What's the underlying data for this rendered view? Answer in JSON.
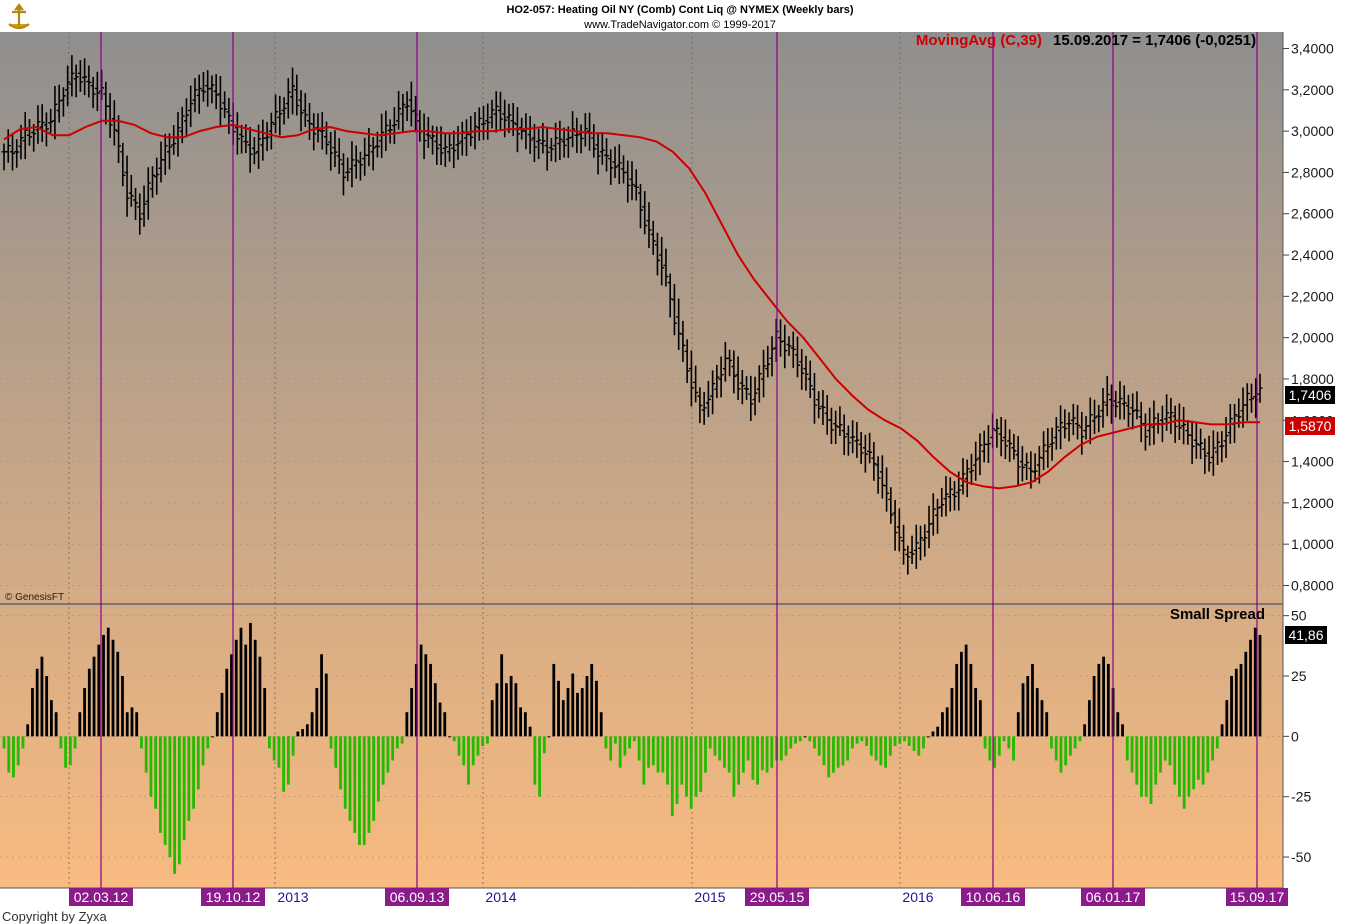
{
  "header": {
    "title": "HO2-057:  Heating Oil NY (Comb) Cont Liq @ NYMEX  (Weekly bars)",
    "subtitle": "www.TradeNavigator.com © 1999-2017"
  },
  "legend": {
    "indicator": "MovingAvg (C,39)",
    "reading": "15.09.2017 = 1,7406 (-0,0251)"
  },
  "watermark": "© GenesisFT",
  "copyright": "Copyright by Zyxa",
  "colors": {
    "bg_top": "#8f8f8f",
    "bg_bottom": "#f9bb80",
    "price_bars": "#000000",
    "moving_avg": "#cc0000",
    "vertical_markers": "#8b008b",
    "hist_positive": "#000000",
    "hist_negative": "#22bb00",
    "legend_text": "#cc0000"
  },
  "chart_data": [
    {
      "type": "ohlc",
      "name": "price_panel",
      "y_axis": {
        "ticks": [
          "3,4000",
          "3,2000",
          "3,0000",
          "2,8000",
          "2,6000",
          "2,4000",
          "2,2000",
          "2,0000",
          "1,8000",
          "1,6000",
          "1,4000",
          "1,2000",
          "1,0000",
          "0,8000"
        ],
        "ylim": [
          0.72,
          3.48
        ]
      },
      "last_price_label": "1,7406",
      "moving_avg_label": "1,5870",
      "series": [
        {
          "name": "Heating Oil weekly close",
          "values": [
            2.9,
            2.98,
            3.02,
            3.05,
            3.2,
            3.28,
            3.22,
            3.18,
            3.0,
            2.7,
            2.6,
            2.78,
            2.9,
            3.0,
            3.15,
            3.22,
            3.18,
            3.05,
            2.95,
            2.9,
            3.0,
            3.1,
            3.2,
            3.05,
            3.0,
            2.92,
            2.8,
            2.85,
            2.9,
            2.98,
            3.05,
            3.15,
            3.0,
            2.95,
            2.9,
            2.95,
            3.0,
            3.05,
            3.1,
            3.05,
            3.0,
            2.95,
            2.92,
            2.95,
            2.98,
            3.0,
            2.9,
            2.85,
            2.8,
            2.7,
            2.5,
            2.35,
            2.1,
            1.85,
            1.65,
            1.75,
            1.9,
            1.78,
            1.7,
            1.85,
            2.0,
            1.95,
            1.85,
            1.7,
            1.6,
            1.55,
            1.5,
            1.45,
            1.35,
            1.15,
            0.95,
            0.98,
            1.1,
            1.22,
            1.25,
            1.35,
            1.45,
            1.55,
            1.5,
            1.4,
            1.35,
            1.45,
            1.55,
            1.6,
            1.55,
            1.62,
            1.7,
            1.68,
            1.65,
            1.55,
            1.6,
            1.62,
            1.55,
            1.48,
            1.42,
            1.5,
            1.62,
            1.7,
            1.74
          ]
        },
        {
          "name": "MovingAvg (C,39)",
          "values": [
            2.96,
            3.01,
            3.02,
            2.98,
            2.98,
            3.02,
            3.05,
            3.05,
            3.03,
            2.99,
            2.97,
            2.97,
            3.0,
            3.02,
            3.03,
            3.01,
            2.99,
            2.97,
            2.98,
            3.01,
            3.02,
            3.0,
            2.99,
            2.98,
            2.99,
            3.0,
            3.0,
            2.99,
            2.99,
            3.0,
            3.0,
            3.01,
            3.01,
            3.02,
            3.01,
            3.0,
            2.99,
            2.99,
            2.98,
            2.97,
            2.95,
            2.9,
            2.82,
            2.7,
            2.55,
            2.4,
            2.28,
            2.18,
            2.08,
            2.0,
            1.9,
            1.8,
            1.72,
            1.65,
            1.6,
            1.56,
            1.5,
            1.42,
            1.35,
            1.3,
            1.28,
            1.27,
            1.28,
            1.3,
            1.35,
            1.42,
            1.48,
            1.52,
            1.54,
            1.56,
            1.58,
            1.58,
            1.6,
            1.59,
            1.58,
            1.58,
            1.59,
            1.59
          ]
        }
      ]
    },
    {
      "type": "bar",
      "name": "histogram_panel",
      "title": "Small Spread",
      "last_value_label": "41,86",
      "y_axis": {
        "ticks": [
          "50",
          "25",
          "0",
          "-25",
          "-50"
        ],
        "ylim": [
          -62,
          54
        ]
      },
      "series": [
        {
          "name": "Small Spread",
          "values": [
            -5,
            -15,
            -17,
            -12,
            -5,
            5,
            20,
            28,
            33,
            25,
            15,
            10,
            -5,
            -13,
            -12,
            -5,
            10,
            20,
            28,
            33,
            38,
            42,
            45,
            40,
            35,
            25,
            10,
            12,
            10,
            -5,
            -15,
            -25,
            -30,
            -40,
            -45,
            -50,
            -57,
            -53,
            -43,
            -35,
            -30,
            -22,
            -12,
            -5,
            0,
            10,
            18,
            28,
            34,
            40,
            45,
            38,
            47,
            40,
            33,
            20,
            -5,
            -10,
            -13,
            -23,
            -20,
            -8,
            2,
            3,
            5,
            10,
            20,
            34,
            26,
            -5,
            -13,
            -22,
            -30,
            -35,
            -40,
            -45,
            -45,
            -40,
            -35,
            -27,
            -20,
            -15,
            -10,
            -5,
            -3,
            10,
            20,
            30,
            38,
            34,
            30,
            22,
            14,
            10,
            0,
            -2,
            -8,
            -12,
            -20,
            -12,
            -8,
            -4,
            -3,
            15,
            22,
            34,
            22,
            25,
            22,
            12,
            10,
            4,
            -20,
            -25,
            -7,
            0,
            30,
            23,
            15,
            20,
            26,
            18,
            20,
            25,
            30,
            23,
            10,
            -5,
            -10,
            -3,
            -13,
            -8,
            -5,
            -2,
            -10,
            -20,
            -13,
            -12,
            -15,
            -15,
            -20,
            -33,
            -28,
            -20,
            -25,
            -30,
            -25,
            -23,
            -15,
            -5,
            -8,
            -10,
            -13,
            -15,
            -25,
            -20,
            -15,
            -10,
            -18,
            -20,
            -14,
            -15,
            -13,
            -10,
            -10,
            -8,
            -5,
            -3,
            -2,
            0,
            -2,
            -5,
            -8,
            -12,
            -17,
            -15,
            -13,
            -12,
            -10,
            -5,
            -3,
            -2,
            -4,
            -8,
            -10,
            -12,
            -13,
            -8,
            -4,
            -3,
            -2,
            -4,
            -6,
            -8,
            -5,
            0,
            2,
            4,
            10,
            12,
            20,
            30,
            35,
            38,
            30,
            20,
            15,
            -5,
            -10,
            -13,
            -8,
            -2,
            -5,
            -10,
            10,
            22,
            25,
            30,
            20,
            15,
            10,
            -5,
            -10,
            -15,
            -12,
            -8,
            -5,
            -2,
            5,
            15,
            25,
            30,
            33,
            30,
            20,
            10,
            5,
            -10,
            -15,
            -20,
            -25,
            -25,
            -28,
            -20,
            -15,
            -10,
            -12,
            -20,
            -25,
            -30,
            -25,
            -22,
            -18,
            -20,
            -15,
            -10,
            -5,
            5,
            15,
            25,
            28,
            30,
            35,
            40,
            45,
            42
          ]
        }
      ]
    }
  ],
  "x_axis": {
    "year_labels": [
      "2013",
      "2014",
      "2015",
      "2016"
    ],
    "marker_labels": [
      "02.03.12",
      "19.10.12",
      "06.09.13",
      "29.05.15",
      "10.06.16",
      "06.01.17",
      "15.09.17"
    ]
  }
}
